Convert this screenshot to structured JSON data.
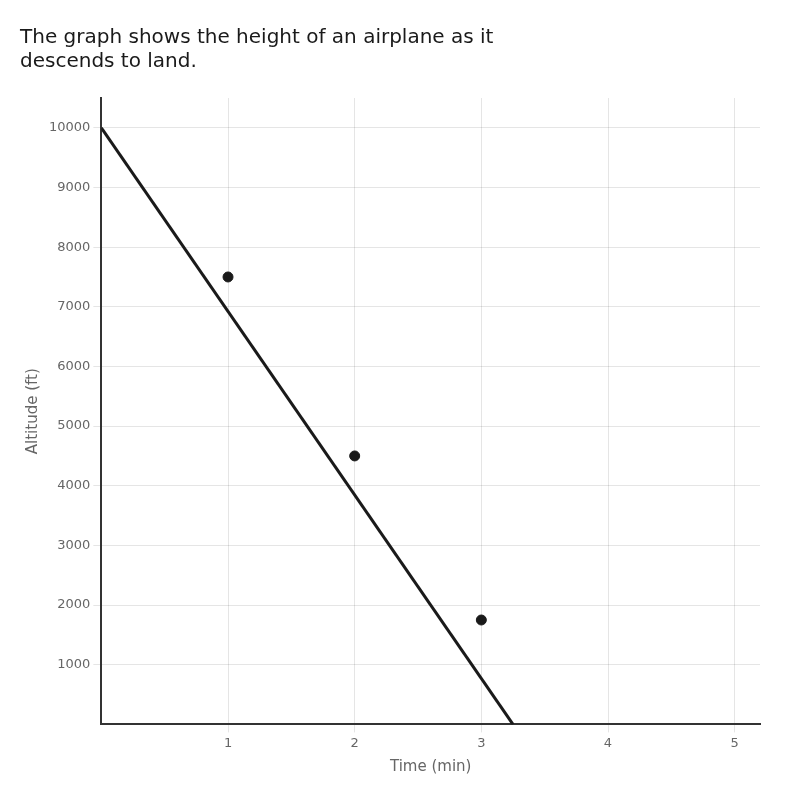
{
  "chart_data": {
    "type": "line",
    "title": [
      "The graph shows the height of an airplane as it",
      "descends to land."
    ],
    "x_label": "Time (min)",
    "y_label": "Altitude (ft)",
    "series": [
      {
        "type": "line",
        "x": [
          0,
          3.25
        ],
        "values": [
          10000,
          0
        ],
        "color": "#1a1a1a",
        "marker": "none",
        "line_style": "solid"
      },
      {
        "type": "scatter",
        "x": [
          1,
          2,
          3
        ],
        "values": [
          7500,
          4500,
          1750
        ],
        "color": "#1a1a1a",
        "marker": "circle"
      }
    ],
    "xlim": [
      0,
      5.2
    ],
    "ylim": [
      0,
      10500
    ],
    "xticks": [
      1,
      2,
      3,
      4,
      5
    ],
    "yticks": [
      1000,
      2000,
      3000,
      4000,
      5000,
      6000,
      7000,
      8000,
      9000,
      10000
    ],
    "grid": true
  }
}
